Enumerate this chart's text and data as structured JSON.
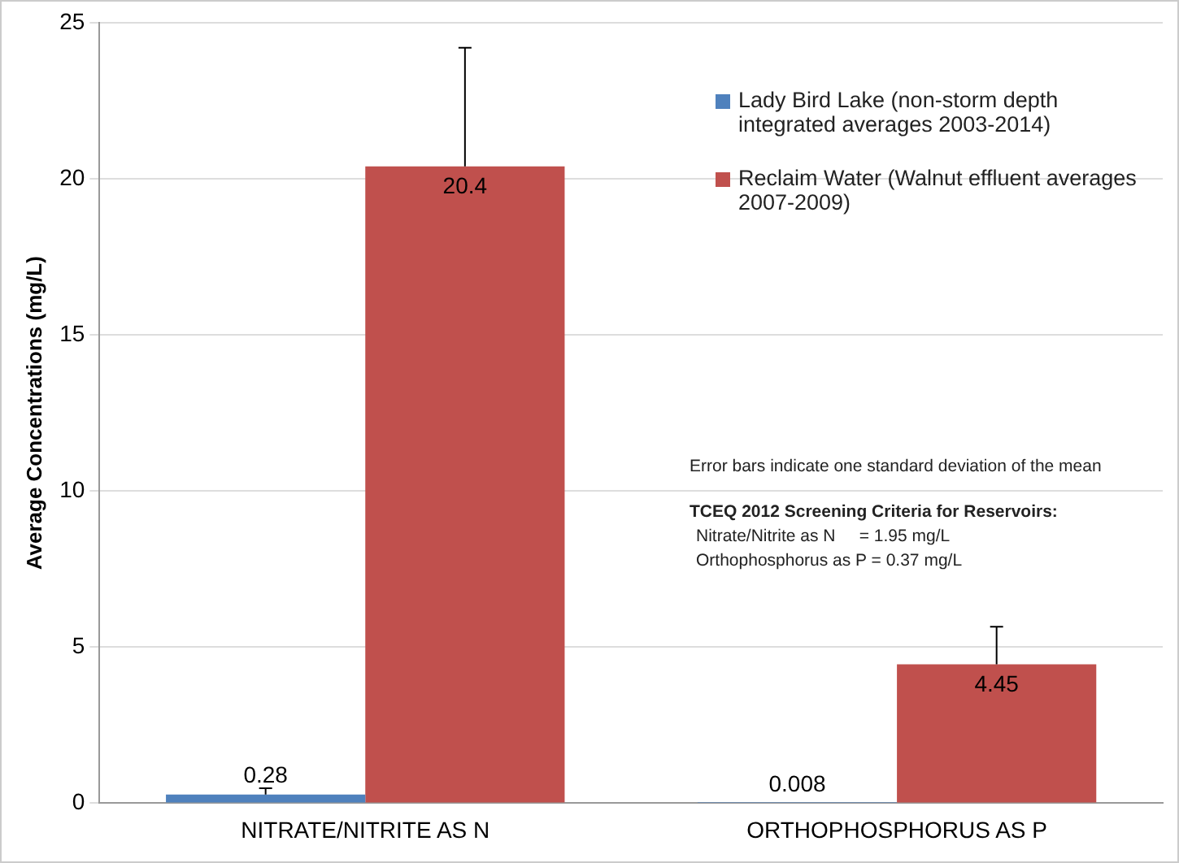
{
  "chart_data": {
    "type": "bar",
    "ylabel": "Average Concentrations (mg/L)",
    "categories": [
      "NITRATE/NITRITE AS N",
      "ORTHOPHOSPHORUS AS P"
    ],
    "series": [
      {
        "name": "Lady Bird Lake (non-storm depth integrated averages 2003-2014)",
        "color": "#4f81bd",
        "values": [
          0.28,
          0.008
        ],
        "errors": [
          0.2,
          null
        ]
      },
      {
        "name": "Reclaim Water (Walnut effluent averages 2007-2009)",
        "color": "#c0504d",
        "values": [
          20.4,
          4.45
        ],
        "errors": [
          3.8,
          1.2
        ]
      }
    ],
    "ylim": [
      0,
      25
    ],
    "yticks": [
      0,
      5,
      10,
      15,
      20,
      25
    ],
    "grid": "y",
    "legend": "top right",
    "data_labels": true,
    "annotations": [
      "Error bars indicate one standard deviation of the mean",
      "TCEQ 2012 Screening Criteria for Reservoirs:",
      "Nitrate/Nitrite as N     = 1.95 mg/L",
      "Orthophosphorus as P = 0.37 mg/L"
    ]
  }
}
